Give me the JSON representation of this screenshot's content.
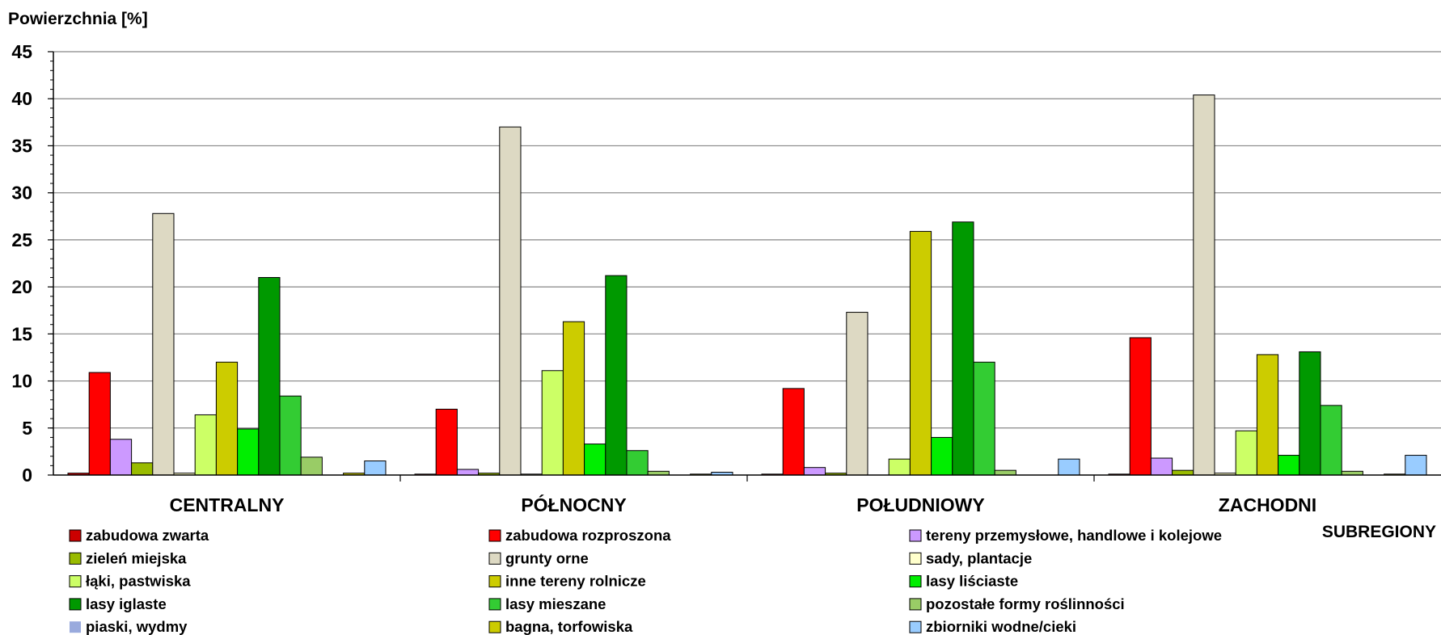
{
  "chart_data": {
    "type": "bar",
    "ylabel": "Powierzchnia [%]",
    "xlabel": "SUBREGIONY",
    "ylim": [
      0,
      45
    ],
    "yticks": [
      0,
      5,
      10,
      15,
      20,
      25,
      30,
      35,
      40,
      45
    ],
    "grid": true,
    "legend_position": "bottom",
    "categories": [
      "CENTRALNY",
      "PÓŁNOCNY",
      "POŁUDNIOWY",
      "ZACHODNI"
    ],
    "series": [
      {
        "name": "zabudowa zwarta",
        "color": "#cc0000",
        "values": [
          0.2,
          0.1,
          0.1,
          0.1
        ]
      },
      {
        "name": "zabudowa rozproszona",
        "color": "#ff0000",
        "values": [
          10.9,
          7.0,
          9.2,
          14.6
        ]
      },
      {
        "name": "tereny przemysłowe, handlowe i kolejowe",
        "color": "#cc99ff",
        "values": [
          3.8,
          0.6,
          0.8,
          1.8
        ]
      },
      {
        "name": "zieleń miejska",
        "color": "#99bb00",
        "values": [
          1.3,
          0.2,
          0.2,
          0.5
        ]
      },
      {
        "name": "grunty orne",
        "color": "#ddd9c3",
        "values": [
          27.8,
          37.0,
          17.3,
          40.4
        ]
      },
      {
        "name": "sady, plantacje",
        "color": "#ffffcc",
        "values": [
          0.2,
          0.1,
          0.0,
          0.2
        ]
      },
      {
        "name": "łąki, pastwiska",
        "color": "#ccff66",
        "values": [
          6.4,
          11.1,
          1.7,
          4.7
        ]
      },
      {
        "name": "inne tereny rolnicze",
        "color": "#cccc00",
        "values": [
          12.0,
          16.3,
          25.9,
          12.8
        ]
      },
      {
        "name": "lasy liściaste",
        "color": "#00ee00",
        "values": [
          4.9,
          3.3,
          4.0,
          2.1
        ]
      },
      {
        "name": "lasy iglaste",
        "color": "#009900",
        "values": [
          21.0,
          21.2,
          26.9,
          13.1
        ]
      },
      {
        "name": "lasy mieszane",
        "color": "#33cc33",
        "values": [
          8.4,
          2.6,
          12.0,
          7.4
        ]
      },
      {
        "name": "pozostałe formy roślinności",
        "color": "#99cc66",
        "values": [
          1.9,
          0.4,
          0.5,
          0.4
        ]
      },
      {
        "name": "piaski, wydmy",
        "color": "#99aadd",
        "values": [
          0.0,
          0.0,
          0.0,
          0.0
        ]
      },
      {
        "name": "bagna, torfowiska",
        "color": "#cccc00",
        "values": [
          0.2,
          0.1,
          0.0,
          0.1
        ]
      },
      {
        "name": "zbiorniki wodne/cieki",
        "color": "#99ccff",
        "values": [
          1.5,
          0.3,
          1.7,
          2.1
        ]
      }
    ]
  }
}
